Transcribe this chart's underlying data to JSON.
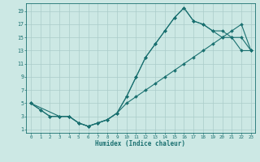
{
  "xlabel": "Humidex (Indice chaleur)",
  "bg_color": "#cce8e4",
  "grid_color": "#aaccca",
  "line_color": "#1a7070",
  "xlim_min": -0.5,
  "xlim_max": 23.4,
  "ylim_min": 0.5,
  "ylim_max": 20.2,
  "xticks": [
    0,
    1,
    2,
    3,
    4,
    5,
    6,
    7,
    8,
    9,
    10,
    11,
    12,
    13,
    14,
    15,
    16,
    17,
    18,
    19,
    20,
    21,
    22,
    23
  ],
  "yticks": [
    1,
    3,
    5,
    7,
    9,
    11,
    13,
    15,
    17,
    19
  ],
  "line1_x": [
    0,
    1,
    2,
    3,
    4,
    5,
    6,
    7,
    8,
    9,
    10,
    11,
    12,
    13,
    14,
    15,
    16,
    17,
    18,
    19,
    20,
    21,
    22,
    23
  ],
  "line1_y": [
    5,
    4,
    3,
    3,
    3,
    2,
    1.5,
    2,
    2.5,
    3.5,
    6,
    9,
    12,
    14,
    16,
    18,
    19.5,
    17.5,
    17,
    16,
    15,
    15,
    13,
    13
  ],
  "line2_x": [
    0,
    1,
    2,
    3,
    4,
    5,
    6,
    7,
    8,
    9,
    10,
    11,
    12,
    13,
    14,
    15,
    16,
    17,
    18,
    19,
    20,
    21,
    22,
    23
  ],
  "line2_y": [
    5,
    4,
    3,
    3,
    3,
    2,
    1.5,
    2,
    2.5,
    3.5,
    5,
    6,
    7,
    8,
    9,
    10,
    11,
    12,
    13,
    14,
    15,
    16,
    17,
    13
  ],
  "line3_x": [
    0,
    3,
    4,
    5,
    6,
    7,
    8,
    9,
    10,
    11,
    12,
    13,
    14,
    15,
    16,
    17,
    18,
    19,
    20,
    21,
    22,
    23
  ],
  "line3_y": [
    5,
    3,
    3,
    2,
    1.5,
    2,
    2.5,
    3.5,
    6,
    9,
    12,
    14,
    16,
    18,
    19.5,
    17.5,
    17,
    16,
    16,
    15,
    15,
    13
  ]
}
